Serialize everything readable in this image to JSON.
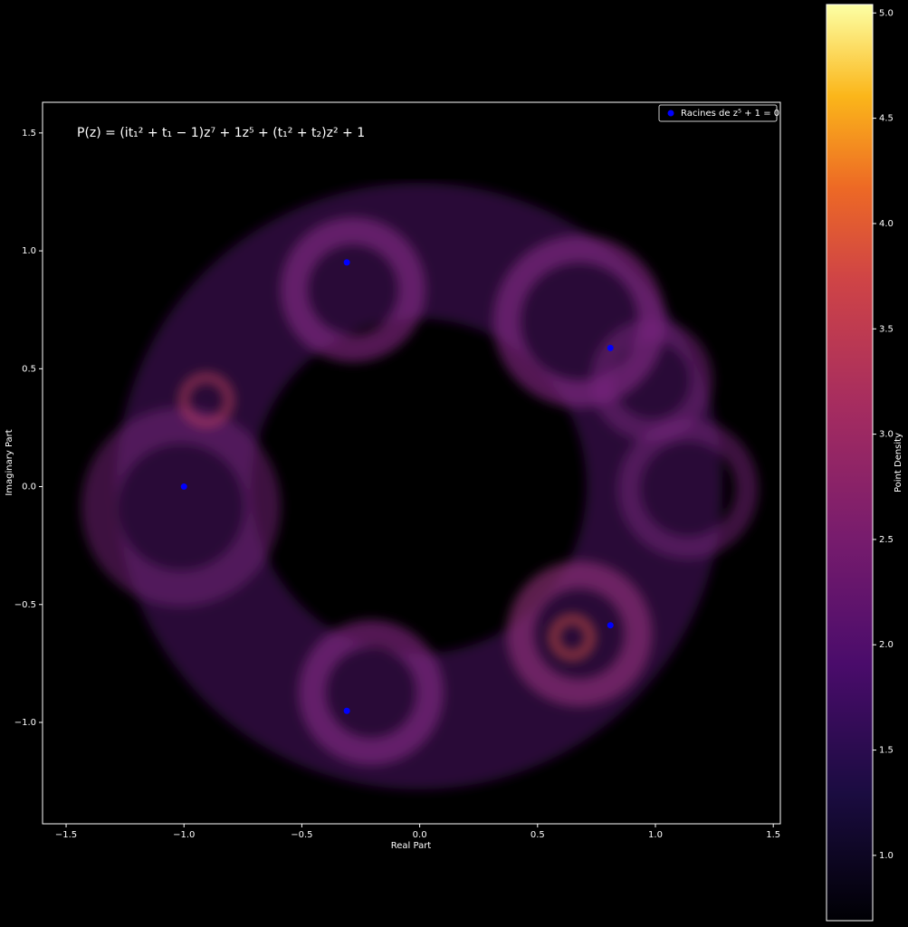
{
  "chart_data": {
    "type": "scatter",
    "annotation": "P(z) = (it₁² + t₁ − 1)z⁷ + 1z⁵ + (t₁² + t₂)z² + 1",
    "x_label": "Real Part",
    "y_label": "Imaginary Part",
    "xlim": [
      -1.6,
      1.53
    ],
    "ylim": [
      -1.43,
      1.63
    ],
    "xticks": [
      {
        "value": -1.5,
        "label": "−1.5"
      },
      {
        "value": -1.0,
        "label": "−1.0"
      },
      {
        "value": -0.5,
        "label": "−0.5"
      },
      {
        "value": 0,
        "label": "0.0"
      },
      0.5,
      {
        "value": 1.0,
        "label": "1.0"
      },
      1.5
    ],
    "yticks": [
      {
        "value": -1.0,
        "label": "−1.0"
      },
      {
        "value": -0.5,
        "label": "−0.5"
      },
      {
        "value": 0,
        "label": "0.0"
      },
      0.5,
      {
        "value": 1.0,
        "label": "1.0"
      },
      1.5
    ],
    "legend": "upper right",
    "series": [
      {
        "name": "Racines de z⁵ + 1 = 0",
        "color": "#0000ff",
        "x": [
          0.809,
          -0.309,
          -1.0,
          -0.309,
          0.809
        ],
        "y": [
          0.588,
          0.951,
          0.0,
          -0.951,
          -0.588
        ]
      }
    ],
    "colorbar": {
      "label": "Point Density",
      "lim": [
        0.69,
        5.04
      ],
      "ticks": [
        {
          "value": 1.0,
          "label": "1.0"
        },
        1.5,
        {
          "value": 2.0,
          "label": "2.0"
        },
        2.5,
        {
          "value": 3.0,
          "label": "3.0"
        },
        3.5,
        {
          "value": 4.0,
          "label": "4.0"
        },
        4.5,
        {
          "value": 5.0,
          "label": "5.0"
        }
      ]
    }
  }
}
